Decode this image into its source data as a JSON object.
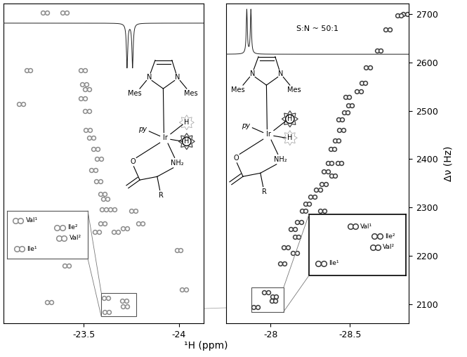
{
  "chart_data": [
    {
      "type": "scatter",
      "color": "#8a8a8a",
      "marker": "o",
      "xlabel": "¹H (ppm)",
      "tick_labels": "x",
      "xlim": [
        -23.08,
        -24.13
      ],
      "xticks": [
        -23.5,
        -24
      ],
      "ylim": [
        2060,
        2722
      ],
      "projection": {
        "x": [
          -23.728,
          -23.757
        ],
        "values": [
          -1,
          -1
        ]
      },
      "x": [
        -23.618,
        -23.713,
        -23.717,
        -23.621,
        -23.298,
        -23.401,
        -23.21,
        -23.496,
        -23.504,
        -23.518,
        -23.496,
        -23.518,
        -23.522,
        -23.54,
        -23.563,
        -23.581,
        -23.551,
        -23.577,
        -23.599,
        -23.614,
        -23.607,
        -23.651,
        -23.599,
        -23.57,
        -23.669,
        -23.717,
        -23.798,
        -23.761,
        -23.412,
        -24.0,
        -24.026,
        -23.173,
        -23.32
      ],
      "y": [
        2113,
        2106,
        2095,
        2084,
        2703,
        2703,
        2584,
        2584,
        2555,
        2544,
        2526,
        2499,
        2460,
        2444,
        2421,
        2401,
        2377,
        2354,
        2328,
        2318,
        2296,
        2296,
        2267,
        2249,
        2249,
        2257,
        2267,
        2293,
        2180,
        2212,
        2130,
        2514,
        2104
      ],
      "point_labels": [
        "Val¹",
        "Ile²",
        "Val²",
        "Ile¹",
        null,
        null,
        null,
        null,
        null,
        null,
        null,
        null,
        null,
        null,
        null,
        null,
        null,
        null,
        null,
        null,
        null,
        null,
        null,
        null,
        null,
        null,
        null,
        null,
        null,
        null,
        null,
        null,
        null
      ]
    },
    {
      "type": "scatter",
      "color": "#3a3a3a",
      "marker": "o",
      "ylabel": "Δν (Hz)",
      "annotation": "S:N ~ 50:1",
      "xlim": [
        -27.72,
        -28.87
      ],
      "xticks": [
        -28,
        -28.5
      ],
      "ylim": [
        2060,
        2722
      ],
      "yticks": [
        2100,
        2200,
        2300,
        2400,
        2500,
        2600,
        2700
      ],
      "projection": {
        "x": [
          -27.85,
          -27.876
        ],
        "values": [
          1,
          1
        ]
      },
      "x": [
        -27.971,
        -28.022,
        -28.018,
        -27.905,
        -28.073,
        -28.095,
        -28.164,
        -28.139,
        -28.179,
        -28.208,
        -28.23,
        -28.263,
        -28.299,
        -28.336,
        -28.347,
        -28.372,
        -28.391,
        -28.416,
        -28.445,
        -28.438,
        -28.474,
        -28.5,
        -28.482,
        -28.555,
        -28.584,
        -28.613,
        -28.682,
        -28.737,
        -28.81,
        -28.847,
        -28.394,
        -28.434,
        -28.325,
        -28.153
      ],
      "y": [
        2124,
        2116,
        2107,
        2094,
        2183,
        2217,
        2239,
        2255,
        2270,
        2293,
        2308,
        2322,
        2337,
        2348,
        2374,
        2392,
        2421,
        2438,
        2460,
        2482,
        2497,
        2511,
        2528,
        2540,
        2558,
        2590,
        2624,
        2668,
        2697,
        2700,
        2365,
        2392,
        2293,
        2206
      ],
      "point_labels": [
        "Val¹",
        "Ile²",
        "Val²",
        "Ile¹",
        null,
        null,
        null,
        null,
        null,
        null,
        null,
        null,
        null,
        null,
        null,
        null,
        null,
        null,
        null,
        null,
        null,
        null,
        null,
        null,
        null,
        null,
        null,
        null,
        null,
        null,
        null,
        null,
        null,
        null
      ]
    }
  ],
  "structure": {
    "labels": [
      "Mes",
      "N",
      "N",
      "Mes",
      "py",
      "Ir",
      "H",
      "H",
      "O",
      "NH₂",
      "R"
    ]
  }
}
